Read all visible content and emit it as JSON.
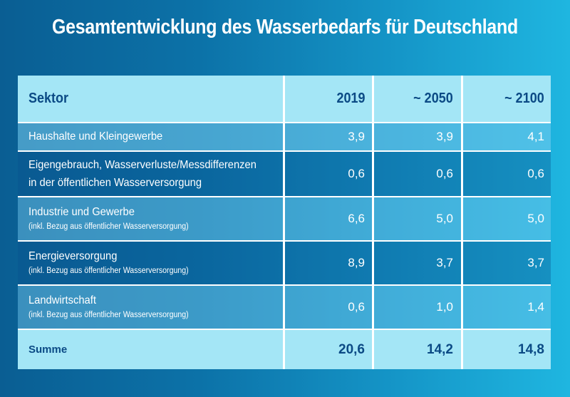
{
  "title": "Gesamtentwicklung des Wasserbedarfs für Deutschland",
  "header": {
    "sektor": "Sektor",
    "y2019": "2019",
    "y2050": "~ 2050",
    "y2100": "~ 2100"
  },
  "rows": [
    {
      "label": "Haushalte und Kleingewerbe",
      "note": "",
      "v2019": "3,9",
      "v2050": "3,9",
      "v2100": "4,1"
    },
    {
      "label": "Eigengebrauch, Wasserverluste/Messdifferenzen",
      "label2": "in der öffentlichen Wasserversorgung",
      "v2019": "0,6",
      "v2050": "0,6",
      "v2100": "0,6"
    },
    {
      "label": "Industrie und Gewerbe",
      "note": "(inkl. Bezug aus öffentlicher Wasserversorgung)",
      "v2019": "6,6",
      "v2050": "5,0",
      "v2100": "5,0"
    },
    {
      "label": "Energieversorgung",
      "note": "(inkl. Bezug aus öffentlicher Wasserversorgung)",
      "v2019": "8,9",
      "v2050": "3,7",
      "v2100": "3,7"
    },
    {
      "label": "Landwirtschaft",
      "note": "(inkl. Bezug aus öffentlicher Wasserversorgung)",
      "v2019": "0,6",
      "v2050": "1,0",
      "v2100": "1,4"
    }
  ],
  "summe": {
    "label": "Summe",
    "v2019": "20,6",
    "v2050": "14,2",
    "v2100": "14,8"
  }
}
